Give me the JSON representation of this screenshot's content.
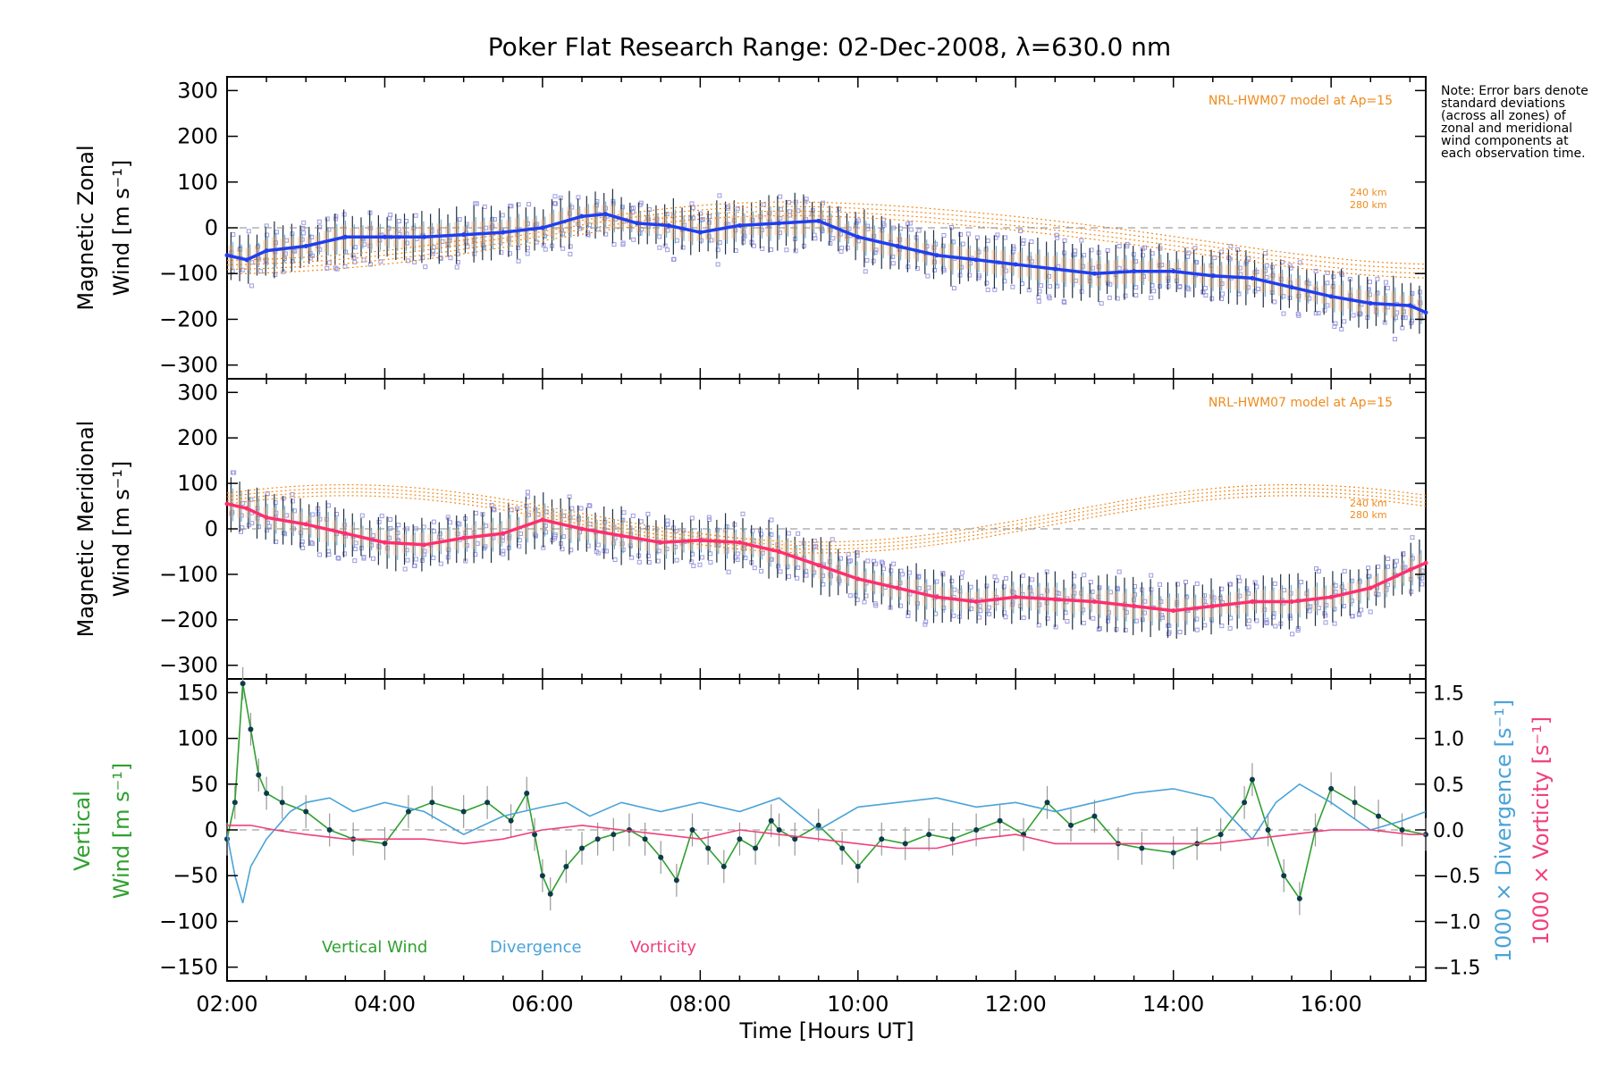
{
  "chart_data": [
    {
      "type": "line",
      "title": "Poker Flat Research Range: 02-Dec-2008, λ=630.0 nm",
      "ylabel_line1": "Magnetic Zonal",
      "ylabel_line2": "Wind [m s⁻¹]",
      "xlabel": "Time [Hours UT]",
      "ylim": [
        -330,
        330
      ],
      "yticks": [
        "300",
        "200",
        "100",
        "0",
        "−100",
        "−200",
        "−300"
      ],
      "xticks": [
        "02:00",
        "04:00",
        "06:00",
        "08:00",
        "10:00",
        "12:00",
        "14:00",
        "16:00"
      ],
      "model_label": "NRL-HWM07 model at Ap=15",
      "model_alt_labels": [
        "240 km",
        "280 km"
      ],
      "series": [
        {
          "name": "",
          "x": [
            2.0,
            2.25,
            2.5,
            3.0,
            3.5,
            4.0,
            4.5,
            5.0,
            5.5,
            6.0,
            6.5,
            6.8,
            7.2,
            7.6,
            8.0,
            8.5,
            9.0,
            9.5,
            10.0,
            10.5,
            11.0,
            11.5,
            12.0,
            12.5,
            13.0,
            13.5,
            14.0,
            14.5,
            15.0,
            15.5,
            16.0,
            16.5,
            17.0,
            17.2
          ],
          "y": [
            -60,
            -70,
            -50,
            -40,
            -20,
            -20,
            -20,
            -15,
            -10,
            0,
            25,
            30,
            10,
            5,
            -10,
            5,
            10,
            15,
            -20,
            -40,
            -60,
            -70,
            -80,
            -90,
            -100,
            -95,
            -95,
            -105,
            -110,
            -130,
            -150,
            -165,
            -170,
            -185
          ]
        }
      ],
      "colors": {
        "mean": "#1f3ef0",
        "spread": "#f4a460",
        "model": "#f08a1c",
        "samples": "#9c9be0"
      }
    },
    {
      "type": "line",
      "ylabel_line1": "Magnetic Meridional",
      "ylabel_line2": "Wind [m s⁻¹]",
      "ylim": [
        -330,
        330
      ],
      "yticks": [
        "300",
        "200",
        "100",
        "0",
        "−100",
        "−200",
        "−300"
      ],
      "model_label": "NRL-HWM07 model at Ap=15",
      "model_alt_labels": [
        "240 km",
        "280 km"
      ],
      "series": [
        {
          "name": "",
          "x": [
            2.0,
            2.25,
            2.5,
            3.0,
            3.5,
            4.0,
            4.5,
            5.0,
            5.5,
            6.0,
            6.5,
            7.0,
            7.5,
            8.0,
            8.5,
            9.0,
            9.5,
            10.0,
            10.5,
            11.0,
            11.5,
            12.0,
            12.5,
            13.0,
            13.5,
            14.0,
            14.5,
            15.0,
            15.5,
            16.0,
            16.5,
            17.0,
            17.2
          ],
          "y": [
            55,
            45,
            25,
            10,
            -10,
            -30,
            -35,
            -20,
            -10,
            20,
            0,
            -15,
            -30,
            -25,
            -30,
            -50,
            -80,
            -110,
            -130,
            -150,
            -160,
            -150,
            -155,
            -160,
            -170,
            -180,
            -170,
            -160,
            -160,
            -150,
            -130,
            -90,
            -75
          ]
        }
      ],
      "colors": {
        "mean": "#ff2e6e",
        "model": "#f08a1c",
        "samples": "#9c9be0"
      }
    },
    {
      "type": "line",
      "ylabel_left_a": "Vertical",
      "ylabel_left_b": "Wind [m s⁻¹]",
      "ylabel_right_a": "1000 × Divergence [s⁻¹]",
      "ylabel_right_b": "1000 × Vorticity [s⁻¹]",
      "ylim": [
        -165,
        165
      ],
      "ylim_right": [
        -1.65,
        1.65
      ],
      "yticks": [
        "150",
        "100",
        "50",
        "0",
        "−50",
        "−100",
        "−150"
      ],
      "yticks_right": [
        "1.5",
        "1.0",
        "0.5",
        "0.0",
        "−0.5",
        "−1.0",
        "−1.5"
      ],
      "legend": [
        "Vertical Wind",
        "Divergence",
        "Vorticity"
      ],
      "series": [
        {
          "name": "Vertical Wind",
          "x": [
            2.0,
            2.1,
            2.2,
            2.3,
            2.4,
            2.5,
            2.7,
            3.0,
            3.3,
            3.6,
            4.0,
            4.3,
            4.6,
            5.0,
            5.3,
            5.6,
            5.8,
            5.9,
            6.0,
            6.1,
            6.3,
            6.5,
            6.7,
            6.9,
            7.1,
            7.3,
            7.5,
            7.7,
            7.9,
            8.1,
            8.3,
            8.5,
            8.7,
            8.9,
            9.0,
            9.2,
            9.5,
            9.8,
            10.0,
            10.3,
            10.6,
            10.9,
            11.2,
            11.5,
            11.8,
            12.1,
            12.4,
            12.7,
            13.0,
            13.3,
            13.6,
            14.0,
            14.3,
            14.6,
            14.9,
            15.0,
            15.2,
            15.4,
            15.6,
            15.8,
            16.0,
            16.3,
            16.6,
            16.9,
            17.2
          ],
          "y": [
            -10,
            30,
            160,
            110,
            60,
            40,
            30,
            20,
            0,
            -10,
            -15,
            20,
            30,
            20,
            30,
            10,
            40,
            -5,
            -50,
            -70,
            -40,
            -20,
            -10,
            -5,
            0,
            -10,
            -30,
            -55,
            0,
            -20,
            -40,
            -10,
            -20,
            10,
            0,
            -10,
            5,
            -20,
            -40,
            -10,
            -15,
            -5,
            -10,
            0,
            10,
            -5,
            30,
            5,
            15,
            -15,
            -20,
            -25,
            -15,
            -5,
            30,
            55,
            0,
            -50,
            -75,
            0,
            45,
            30,
            15,
            0,
            -5
          ],
          "color": "#2fa02f"
        },
        {
          "name": "Divergence",
          "x": [
            2.0,
            2.1,
            2.2,
            2.3,
            2.5,
            2.8,
            3.0,
            3.3,
            3.6,
            4.0,
            4.5,
            5.0,
            5.5,
            6.0,
            6.3,
            6.6,
            7.0,
            7.5,
            8.0,
            8.5,
            9.0,
            9.5,
            10.0,
            10.5,
            11.0,
            11.5,
            12.0,
            12.5,
            13.0,
            13.5,
            14.0,
            14.5,
            15.0,
            15.3,
            15.6,
            16.0,
            16.5,
            16.9,
            17.2
          ],
          "y": [
            -0.05,
            -0.5,
            -0.8,
            -0.4,
            -0.1,
            0.2,
            0.3,
            0.35,
            0.2,
            0.3,
            0.2,
            -0.05,
            0.15,
            0.25,
            0.3,
            0.15,
            0.3,
            0.2,
            0.3,
            0.2,
            0.35,
            0.0,
            0.25,
            0.3,
            0.35,
            0.25,
            0.3,
            0.2,
            0.3,
            0.4,
            0.45,
            0.35,
            -0.1,
            0.3,
            0.5,
            0.3,
            0.0,
            0.1,
            0.2
          ],
          "color": "#4aa3d8"
        },
        {
          "name": "Vorticity",
          "x": [
            2.0,
            2.3,
            2.6,
            3.0,
            3.5,
            4.0,
            4.5,
            5.0,
            5.5,
            6.0,
            6.5,
            7.0,
            7.5,
            8.0,
            8.5,
            9.0,
            9.5,
            10.0,
            10.5,
            11.0,
            11.5,
            12.0,
            12.5,
            13.0,
            13.5,
            14.0,
            14.5,
            15.0,
            15.5,
            16.0,
            16.5,
            17.0,
            17.2
          ],
          "y": [
            0.05,
            0.05,
            0.0,
            -0.05,
            -0.1,
            -0.1,
            -0.1,
            -0.15,
            -0.1,
            0.0,
            0.05,
            0.0,
            -0.05,
            -0.1,
            0.0,
            -0.05,
            -0.1,
            -0.15,
            -0.2,
            -0.2,
            -0.1,
            -0.05,
            -0.15,
            -0.15,
            -0.15,
            -0.15,
            -0.15,
            -0.1,
            -0.05,
            0.0,
            0.0,
            -0.05,
            -0.05
          ],
          "color": "#f0407a"
        }
      ]
    }
  ],
  "note": "Note: Error bars denote standard deviations (across all zones) of zonal and meridional wind components at each observation time."
}
